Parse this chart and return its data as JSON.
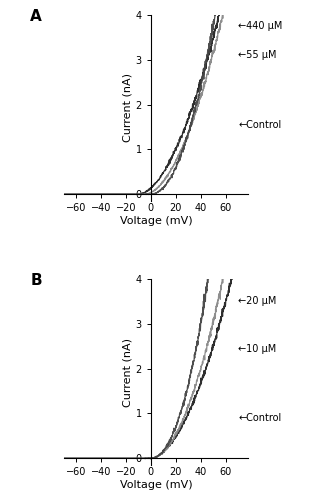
{
  "panel_A_label": "A",
  "panel_B_label": "B",
  "xlabel": "Voltage (mV)",
  "ylabel": "Current (nA)",
  "xlim": [
    -70,
    78
  ],
  "ylim": [
    -0.15,
    4.0
  ],
  "xticks": [
    -60,
    -40,
    -20,
    0,
    20,
    40,
    60
  ],
  "yticks": [
    0,
    1,
    2,
    3,
    4
  ],
  "panel_A": {
    "curves": [
      {
        "label": "440 μM",
        "color": "#222222",
        "lw": 0.9,
        "v_onset": -10,
        "power": 1.8,
        "scale": 0.0022,
        "noise": 0.05,
        "ann_x": 70,
        "ann_y": 3.75
      },
      {
        "label": "55 μM",
        "color": "#888888",
        "lw": 0.9,
        "v_onset": -5,
        "power": 1.85,
        "scale": 0.0019,
        "noise": 0.04,
        "ann_x": 70,
        "ann_y": 3.1
      },
      {
        "label": "Control",
        "color": "#444444",
        "lw": 0.9,
        "v_onset": 0,
        "power": 2.0,
        "scale": 0.0015,
        "noise": 0.06,
        "ann_x": 70,
        "ann_y": 1.55
      }
    ]
  },
  "panel_B": {
    "curves": [
      {
        "label": "20 μM",
        "color": "#222222",
        "lw": 0.9,
        "v_onset": 0,
        "power": 1.8,
        "scale": 0.0022,
        "noise": 0.05,
        "ann_x": 70,
        "ann_y": 3.5
      },
      {
        "label": "10 μM",
        "color": "#888888",
        "lw": 0.9,
        "v_onset": 0,
        "power": 1.9,
        "scale": 0.0018,
        "noise": 0.05,
        "ann_x": 70,
        "ann_y": 2.45
      },
      {
        "label": "Control",
        "color": "#444444",
        "lw": 0.9,
        "v_onset": 0,
        "power": 2.1,
        "scale": 0.0013,
        "noise": 0.07,
        "ann_x": 70,
        "ann_y": 0.9
      }
    ]
  },
  "annotation_fontsize": 7,
  "panel_label_fontsize": 11,
  "axis_label_fontsize": 8,
  "tick_fontsize": 7
}
